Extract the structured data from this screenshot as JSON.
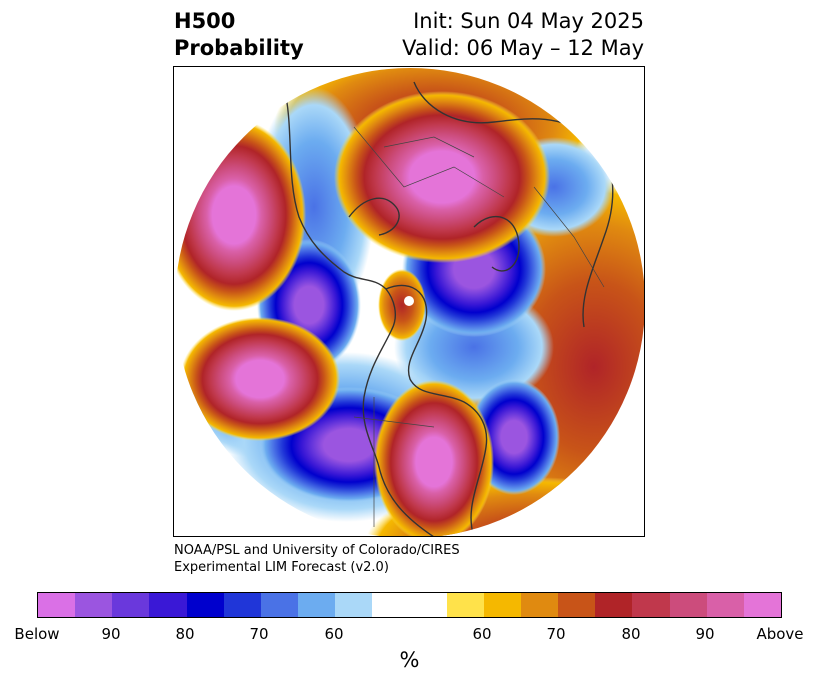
{
  "title": {
    "left_line1": "H500",
    "left_line2": "Probability",
    "right_line1": "Init: Sun 04 May 2025",
    "right_line2": "Valid: 06 May – 12 May"
  },
  "credit": {
    "line1": "NOAA/PSL and University of Colorado/CIRES",
    "line2": "Experimental LIM Forecast (v2.0)"
  },
  "colorbar": {
    "unit": "%",
    "colors": [
      "#da70e6",
      "#9b55e0",
      "#6a38dc",
      "#3a18d6",
      "#0000cd",
      "#2036d8",
      "#4a72e6",
      "#6cacf0",
      "#aad8f8",
      "#ffffff",
      "#ffe24a",
      "#f5b800",
      "#e08a10",
      "#c85418",
      "#b02428",
      "#c0384c",
      "#cc4c7c",
      "#d960a8",
      "#e474d8"
    ],
    "tick_labels": [
      "Below",
      "90",
      "80",
      "70",
      "60",
      "60",
      "70",
      "80",
      "90",
      "Above"
    ]
  },
  "map": {
    "projection": "north-polar-stereographic",
    "features": [
      {
        "name": "above-north-pacific",
        "category": "above"
      },
      {
        "name": "above-central-pacific",
        "category": "above"
      },
      {
        "name": "above-eastern-north-america",
        "category": "above"
      },
      {
        "name": "above-central-europe",
        "category": "above"
      },
      {
        "name": "above-eastern-siberia",
        "category": "above"
      },
      {
        "name": "below-barents-kara",
        "category": "below"
      },
      {
        "name": "below-western-canada",
        "category": "below"
      },
      {
        "name": "below-western-us",
        "category": "below"
      },
      {
        "name": "below-north-atlantic",
        "category": "below"
      }
    ]
  }
}
